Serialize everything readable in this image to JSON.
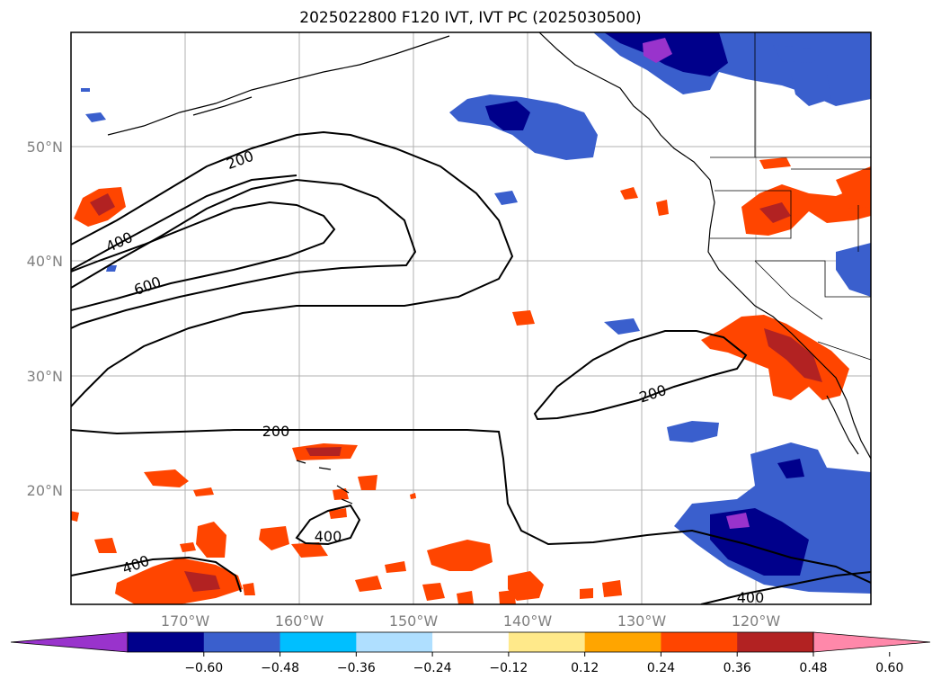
{
  "title": "2025022800 F120 IVT, IVT PC (2025030500)",
  "map": {
    "lat_labels": [
      "50°N",
      "40°N",
      "30°N",
      "20°N"
    ],
    "lon_labels": [
      "170°W",
      "160°W",
      "150°W",
      "140°W",
      "130°W",
      "120°W"
    ],
    "ivt_contour_labels": [
      "200",
      "400",
      "600",
      "200",
      "200",
      "400",
      "400",
      "400"
    ]
  },
  "colorbar": {
    "colors": [
      "#9933cc",
      "#00008b",
      "#3a5fcd",
      "#00bfff",
      "#afdfff",
      "#ffffff",
      "#ffe98a",
      "#ffa500",
      "#ff4500",
      "#b22222",
      "#ff88aa"
    ],
    "tick_labels": [
      "−0.60",
      "−0.48",
      "−0.36",
      "−0.24",
      "−0.12",
      "0.12",
      "0.24",
      "0.36",
      "0.48",
      "0.60"
    ]
  }
}
